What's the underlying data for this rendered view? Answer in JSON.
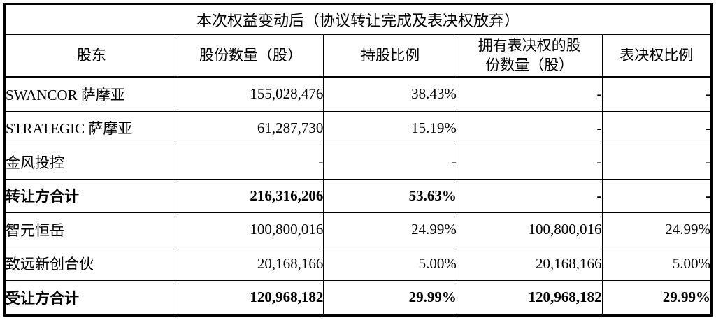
{
  "table": {
    "title": "本次权益变动后（协议转让完成及表决权放弃）",
    "columns": [
      "股东",
      "股份数量（股）",
      "持股比例",
      "拥有表决权的股份数量（股）",
      "表决权比例"
    ],
    "rows": [
      {
        "cells": [
          "SWANCOR 萨摩亚",
          "155,028,476",
          "38.43%",
          "-",
          "-"
        ],
        "bold": false
      },
      {
        "cells": [
          "STRATEGIC 萨摩亚",
          "61,287,730",
          "15.19%",
          "-",
          "-"
        ],
        "bold": false
      },
      {
        "cells": [
          "金风投控",
          "-",
          "-",
          "-",
          "-"
        ],
        "bold": false
      },
      {
        "cells": [
          "转让方合计",
          "216,316,206",
          "53.63%",
          "-",
          "-"
        ],
        "bold": true
      },
      {
        "cells": [
          "智元恒岳",
          "100,800,016",
          "24.99%",
          "100,800,016",
          "24.99%"
        ],
        "bold": false
      },
      {
        "cells": [
          "致远新创合伙",
          "20,168,166",
          "5.00%",
          "20,168,166",
          "5.00%"
        ],
        "bold": false
      },
      {
        "cells": [
          "受让方合计",
          "120,968,182",
          "29.99%",
          "120,968,182",
          "29.99%"
        ],
        "bold": true
      }
    ]
  }
}
